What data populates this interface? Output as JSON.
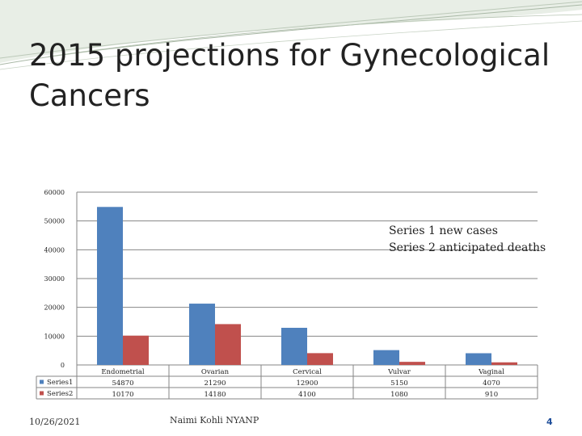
{
  "slide": {
    "title": "2015 projections for Gynecological Cancers",
    "footer_date": "10/26/2021",
    "footer_author": "Naimi Kohli NYANP",
    "page_number": "4"
  },
  "chart_data": {
    "type": "bar",
    "categories": [
      "Endometrial",
      "Ovarian",
      "Cervical",
      "Vulvar",
      "Vaginal"
    ],
    "series": [
      {
        "name": "Series1",
        "values": [
          54870,
          21290,
          12900,
          5150,
          4070
        ],
        "color": "#4f81bd"
      },
      {
        "name": "Series2",
        "values": [
          10170,
          14180,
          4100,
          1080,
          910
        ],
        "color": "#c0504d"
      }
    ],
    "ylim": [
      0,
      60000
    ],
    "yticks": [
      0,
      10000,
      20000,
      30000,
      40000,
      50000,
      60000
    ],
    "grid": true,
    "legend": "data-table-left",
    "annotations": [
      "Series 1 new cases",
      "Series 2 anticipated deaths"
    ]
  }
}
